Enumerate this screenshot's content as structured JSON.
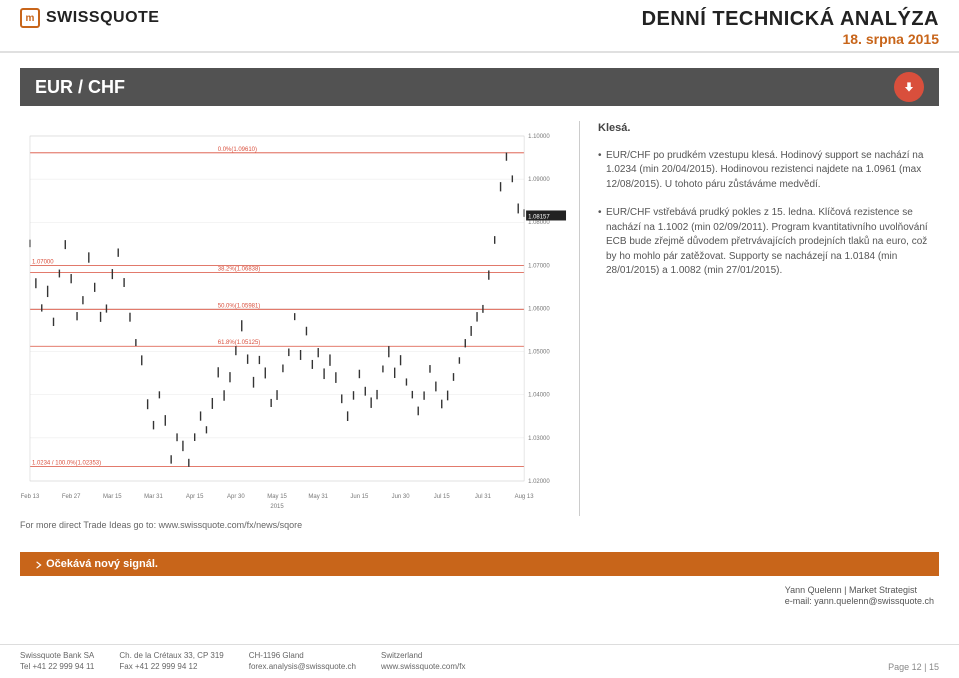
{
  "brand": {
    "name": "SWISSQUOTE"
  },
  "header": {
    "title": "DENNÍ TECHNICKÁ ANALÝZA",
    "date": "18. srpna 2015"
  },
  "pair": {
    "name": "EUR / CHF",
    "direction": "down"
  },
  "analysis": {
    "summary": "Klesá.",
    "bullet1": "EUR/CHF po prudkém vzestupu klesá. Hodinový support se nachází na 1.0234 (min 20/04/2015). Hodinovou rezistenci najdete na 1.0961 (max 12/08/2015). U tohoto páru zůstáváme medvědí.",
    "bullet2": "EUR/CHF vstřebává prudký pokles z 15. ledna. Klíčová rezistence se nachází na 1.1002 (min 02/09/2011). Program kvantitativního uvolňování ECB bude zřejmě důvodem přetrvávajících prodejních tlaků na euro, což by ho mohlo pár zatěžovat. Supporty se nacházejí na 1.0184 (min 28/01/2015) a 1.0082 (min 27/01/2015)."
  },
  "link_line": "For more direct Trade Ideas go to: www.swissquote.com/fx/news/sqore",
  "signal": "Očekává nový signál.",
  "strategist": {
    "name": "Yann Quelenn | Market Strategist",
    "email": "e-mail: yann.quelenn@swissquote.ch"
  },
  "footer": {
    "col1a": "Swissquote Bank SA",
    "col1b": "Tel +41 22 999 94 11",
    "col2a": "Ch. de la Crétaux 33, CP 319",
    "col2b": "Fax +41 22 999 94 12",
    "col3a": "CH-1196 Gland",
    "col3b": "forex.analysis@swissquote.ch",
    "col4a": "Switzerland",
    "col4b": "www.swissquote.com/fx",
    "page": "Page 12 | 15"
  },
  "chart": {
    "type": "candlestick-line",
    "x_labels": [
      "Feb 13",
      "Feb 27",
      "Mar 15",
      "Mar 31",
      "Apr 15",
      "Apr 30",
      "May 15",
      "May 31",
      "Jun 15",
      "Jun 30",
      "Jul 15",
      "Jul 31",
      "Aug 13"
    ],
    "x_year": "2015",
    "y_ticks": [
      1.02,
      1.03,
      1.04,
      1.05,
      1.06,
      1.07,
      1.08,
      1.09,
      1.1
    ],
    "ylim": [
      1.02,
      1.1
    ],
    "pivots": [
      {
        "label": "0.0%(1.09610)",
        "y": 1.0961,
        "color": "#d94f3c"
      },
      {
        "label": "1.07000",
        "y": 1.07,
        "left": true,
        "color": "#d94f3c"
      },
      {
        "label": "38.2%(1.06838)",
        "y": 1.06838,
        "color": "#d94f3c"
      },
      {
        "label": "50.0%(1.05981)",
        "y": 1.05981,
        "color": "#d94f3c"
      },
      {
        "label": "61.8%(1.05125)",
        "y": 1.05125,
        "color": "#d94f3c"
      },
      {
        "label": "1.0234 / 100.0%(1.02353)",
        "y": 1.0234,
        "left": true,
        "color": "#d94f3c"
      }
    ],
    "last_price": {
      "label": "1.08157",
      "y": 1.08157,
      "bg": "#222",
      "fg": "#fff"
    },
    "series": [
      1.075,
      1.066,
      1.06,
      1.064,
      1.057,
      1.068,
      1.075,
      1.067,
      1.058,
      1.062,
      1.072,
      1.065,
      1.058,
      1.06,
      1.068,
      1.073,
      1.066,
      1.058,
      1.052,
      1.048,
      1.038,
      1.033,
      1.04,
      1.034,
      1.025,
      1.03,
      1.028,
      1.024,
      1.03,
      1.035,
      1.032,
      1.038,
      1.045,
      1.04,
      1.044,
      1.05,
      1.056,
      1.048,
      1.043,
      1.048,
      1.045,
      1.038,
      1.04,
      1.046,
      1.05,
      1.058,
      1.049,
      1.055,
      1.047,
      1.05,
      1.045,
      1.048,
      1.044,
      1.039,
      1.035,
      1.04,
      1.045,
      1.041,
      1.038,
      1.04,
      1.046,
      1.05,
      1.045,
      1.048,
      1.043,
      1.04,
      1.036,
      1.04,
      1.046,
      1.042,
      1.038,
      1.04,
      1.044,
      1.048,
      1.052,
      1.055,
      1.058,
      1.06,
      1.068,
      1.076,
      1.088,
      1.095,
      1.09,
      1.083,
      1.082
    ],
    "line_color": "#333333",
    "grid_color": "#e8e8e8",
    "pivot_line_color": "#d94f3c",
    "background": "#ffffff"
  }
}
